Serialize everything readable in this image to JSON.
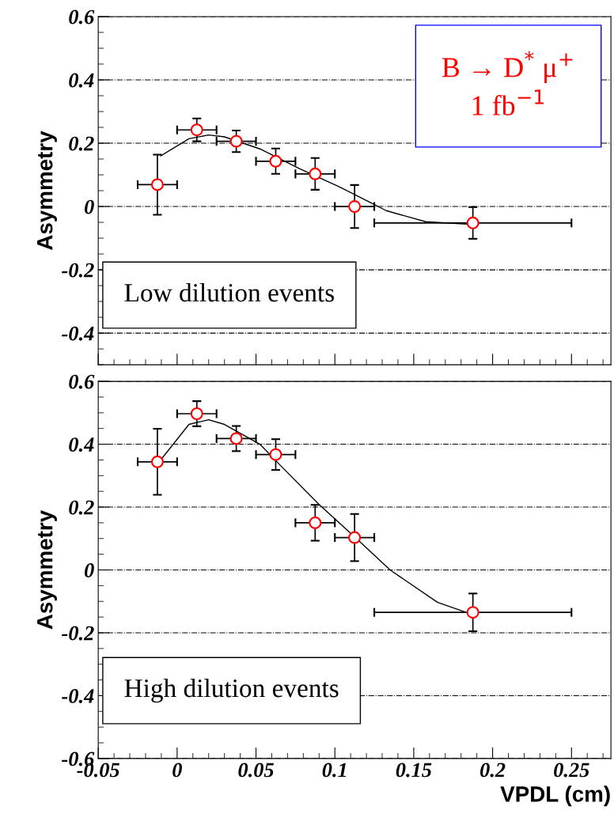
{
  "chart_data": [
    {
      "type": "scatter",
      "ylabel": "Asymmetry",
      "x": [
        -0.0125,
        0.0125,
        0.0375,
        0.0625,
        0.0875,
        0.1125,
        0.1875
      ],
      "xlim": [
        -0.05,
        0.275
      ],
      "ylim": [
        -0.5,
        0.6
      ],
      "yticks": [
        -0.4,
        -0.2,
        0,
        0.2,
        0.4,
        0.6
      ],
      "xticks": [
        -0.05,
        0,
        0.05,
        0.1,
        0.15,
        0.2,
        0.25
      ],
      "tick_labels": "y",
      "grid": "y",
      "series": [
        {
          "marker": "circle",
          "color": "#ff0000",
          "values": [
            0.069,
            0.242,
            0.206,
            0.143,
            0.103,
            0.0,
            -0.052
          ],
          "errors": [
            0.095,
            0.036,
            0.034,
            0.04,
            0.05,
            0.068,
            0.05
          ],
          "xerrors": [
            0.0125,
            0.0125,
            0.0125,
            0.0125,
            0.0125,
            0.0125,
            0.0625
          ]
        },
        {
          "type": "line",
          "marker": "none",
          "color": "#000000",
          "x": [
            -0.0104,
            0.0075,
            0.02,
            0.03,
            0.0525,
            0.0775,
            0.1025,
            0.1125,
            0.1325,
            0.1575,
            0.1875
          ],
          "values": [
            0.16,
            0.214,
            0.226,
            0.22,
            0.182,
            0.12,
            0.063,
            0.038,
            -0.013,
            -0.048,
            -0.057
          ]
        }
      ],
      "annotations": [
        "B → D$^{*}$ μ$^{+}$\n1 fb$^{−1}$",
        "Low dilution events"
      ]
    },
    {
      "type": "scatter",
      "ylabel": "Asymmetry",
      "xlabel": "VPDL (cm)",
      "x": [
        -0.0125,
        0.0125,
        0.0375,
        0.0625,
        0.0875,
        0.1125,
        0.1875
      ],
      "xlim": [
        -0.05,
        0.275
      ],
      "ylim": [
        -0.6,
        0.6
      ],
      "yticks": [
        -0.6,
        -0.4,
        -0.2,
        0,
        0.2,
        0.4,
        0.6
      ],
      "xticks": [
        -0.05,
        0,
        0.05,
        0.1,
        0.15,
        0.2,
        0.25
      ],
      "grid": "y",
      "series": [
        {
          "marker": "circle",
          "color": "#ff0000",
          "values": [
            0.344,
            0.497,
            0.418,
            0.367,
            0.15,
            0.103,
            -0.135
          ],
          "errors": [
            0.105,
            0.04,
            0.04,
            0.049,
            0.057,
            0.075,
            0.06
          ],
          "xerrors": [
            0.0125,
            0.0125,
            0.0125,
            0.0125,
            0.0125,
            0.0125,
            0.0625
          ]
        },
        {
          "type": "line",
          "marker": "none",
          "color": "#000000",
          "x": [
            -0.0104,
            0.0075,
            0.02,
            0.03,
            0.0525,
            0.065,
            0.09,
            0.115,
            0.135,
            0.165,
            0.19
          ],
          "values": [
            0.35,
            0.463,
            0.478,
            0.463,
            0.4,
            0.335,
            0.208,
            0.094,
            0,
            -0.103,
            -0.147
          ]
        }
      ],
      "annotations": [
        "High dilution events"
      ]
    }
  ]
}
